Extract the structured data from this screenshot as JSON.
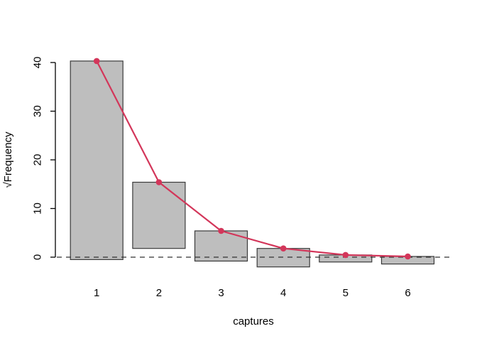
{
  "figure": {
    "background": "#ffffff",
    "title": ""
  },
  "chart_data": {
    "type": "bar",
    "subtype": "hanging-rootogram-with-fitted-line",
    "title": "",
    "xlabel": "captures",
    "ylabel": "√Frequency",
    "categories": [
      "1",
      "2",
      "3",
      "4",
      "5",
      "6"
    ],
    "x_tick_labels": [
      "1",
      "2",
      "3",
      "4",
      "5",
      "6"
    ],
    "y_ticks": [
      0,
      10,
      20,
      30,
      40
    ],
    "y_tick_labels": [
      "0",
      "10",
      "20",
      "30",
      "40"
    ],
    "ylim": [
      -2.5,
      41
    ],
    "grid": false,
    "legend": false,
    "series": [
      {
        "name": "observed-hanging-bars",
        "type": "bar",
        "bar_top_sqrt_freq": [
          40.3,
          15.4,
          5.4,
          1.8,
          0.45,
          0.15
        ],
        "bar_bottom_sqrt_freq": [
          -0.5,
          1.8,
          -0.8,
          -2.0,
          -1.0,
          -1.4
        ],
        "fill_color": "#bebebe",
        "border_color": "#3a3a3a"
      },
      {
        "name": "fitted-curve",
        "type": "line",
        "values": [
          40.3,
          15.4,
          5.4,
          1.8,
          0.45,
          0.15
        ],
        "color": "#d3365a",
        "marker": "filled-circle"
      }
    ],
    "reference_line": {
      "y": 0,
      "style": "dashed",
      "color": "#333333"
    },
    "axis_color": "#000000"
  }
}
